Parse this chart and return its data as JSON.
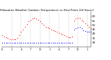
{
  "title": "Milwaukee Weather Outdoor Temperature vs Dew Point (24 Hours)",
  "title_fontsize": 3.0,
  "background_color": "#ffffff",
  "vline_color": "#aaaaaa",
  "temp_color": "#ff0000",
  "dew_color": "#0000ff",
  "dot_size": 0.8,
  "temp_x": [
    0,
    1,
    2,
    3,
    4,
    5,
    6,
    7,
    8,
    9,
    10,
    11,
    12,
    13,
    14,
    15,
    16,
    17,
    18,
    19,
    20,
    21,
    22,
    23,
    24,
    25,
    26,
    27,
    28,
    29,
    30,
    31,
    32,
    33,
    34,
    35,
    36,
    37,
    38,
    39,
    40,
    41,
    42,
    43,
    44,
    45,
    46,
    47
  ],
  "temp_y": [
    38,
    37,
    36,
    35,
    34,
    34,
    34,
    34,
    35,
    38,
    42,
    45,
    48,
    51,
    54,
    56,
    57,
    58,
    57,
    56,
    54,
    52,
    50,
    48,
    47,
    46,
    45,
    44,
    43,
    42,
    41,
    40,
    39,
    38,
    37,
    36,
    36,
    37,
    55,
    57,
    58,
    58,
    56,
    54,
    52,
    50,
    48,
    46
  ],
  "dew_x": [
    0,
    1,
    2,
    3,
    4,
    5,
    6,
    7,
    8,
    9,
    10,
    11,
    12,
    13,
    14,
    15,
    16,
    17,
    18,
    19,
    20,
    21,
    22,
    23,
    24,
    25,
    26,
    27,
    28,
    29,
    30,
    31,
    32,
    33,
    34,
    35,
    36,
    37,
    38,
    39,
    40,
    41,
    42,
    43,
    44,
    45,
    46,
    47
  ],
  "dew_y": [
    30,
    30,
    30,
    30,
    30,
    30,
    30,
    30,
    30,
    30,
    30,
    30,
    30,
    30,
    30,
    30,
    30,
    30,
    30,
    30,
    30,
    30,
    30,
    30,
    30,
    30,
    30,
    30,
    30,
    30,
    30,
    30,
    30,
    30,
    30,
    30,
    30,
    30,
    45,
    46,
    47,
    48,
    46,
    44,
    43,
    42,
    42,
    42
  ],
  "ylim": [
    25,
    65
  ],
  "ytick_vals": [
    30,
    35,
    40,
    45,
    50,
    55,
    60
  ],
  "ytick_labels": [
    "30",
    "35",
    "40",
    "45",
    "50",
    "55",
    "60"
  ],
  "xlim": [
    0,
    47
  ],
  "xtick_positions": [
    0,
    5,
    10,
    15,
    20,
    25,
    30,
    35,
    40,
    45
  ],
  "xtick_labels": [
    "8",
    "1",
    "4",
    "7",
    "10",
    "1",
    "4",
    "7",
    "10",
    "1"
  ],
  "vline_positions": [
    5,
    10,
    15,
    20,
    25,
    30,
    35,
    40,
    45
  ],
  "ylabel_fontsize": 2.8,
  "xlabel_fontsize": 2.5
}
